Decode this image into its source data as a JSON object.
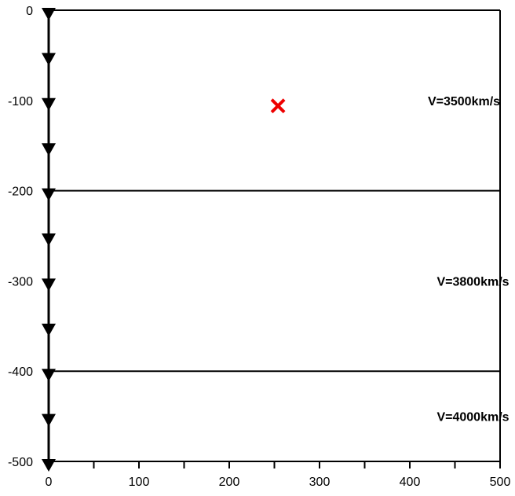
{
  "chart_data": {
    "type": "diagram",
    "x_axis": {
      "range": [
        0,
        500
      ],
      "major_ticks": [
        0,
        100,
        200,
        300,
        400,
        500
      ],
      "minor_ticks": [
        50,
        150,
        250,
        350,
        450
      ],
      "tick_labels": [
        "0",
        "100",
        "200",
        "300",
        "400",
        "500"
      ]
    },
    "y_axis": {
      "range": [
        -500,
        0
      ],
      "tick_values": [
        0,
        -100,
        -200,
        -300,
        -400,
        -500
      ],
      "tick_labels": [
        "0",
        "-100",
        "-200",
        "-300",
        "-400",
        "-500"
      ]
    },
    "layer_boundaries": [
      -200,
      -400
    ],
    "layers": [
      {
        "label": "V=3500km/s",
        "x": 460,
        "y": -100
      },
      {
        "label": "V=3800km/s",
        "x": 470,
        "y": -300
      },
      {
        "label": "V=4000km/s",
        "x": 470,
        "y": -450
      }
    ],
    "receivers": {
      "x": 0,
      "depths": [
        0,
        -50,
        -100,
        -150,
        -200,
        -250,
        -300,
        -350,
        -400,
        -450,
        -500
      ],
      "marker": "down-triangle-icon",
      "color": "#000000"
    },
    "source": {
      "x": 254,
      "y": -106,
      "marker": "cross-icon",
      "color": "#ee0000"
    }
  }
}
